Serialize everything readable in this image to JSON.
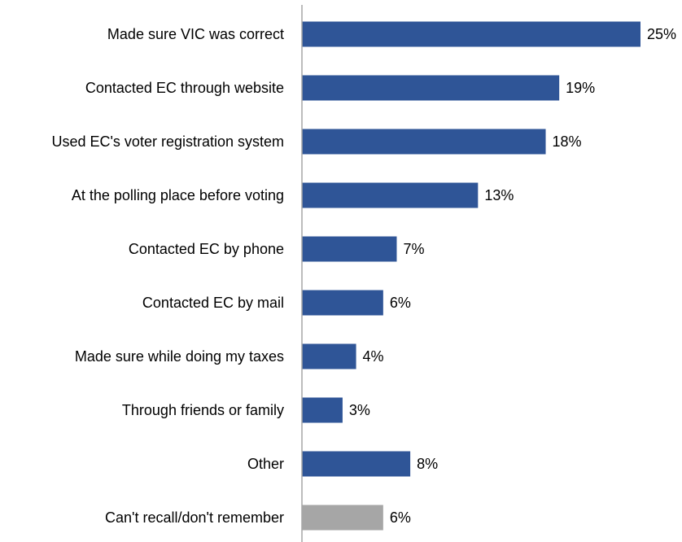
{
  "chart_data": {
    "type": "bar",
    "orientation": "horizontal",
    "categories": [
      "Made sure VIC was correct",
      "Contacted EC through website",
      "Used EC's voter registration system",
      "At the polling place before voting",
      "Contacted EC by phone",
      "Contacted EC by mail",
      "Made sure while doing my taxes",
      "Through friends or family",
      "Other",
      "Can't recall/don't remember"
    ],
    "values": [
      25,
      19,
      18,
      13,
      7,
      6,
      4,
      3,
      8,
      6
    ],
    "value_labels": [
      "25%",
      "19%",
      "18%",
      "13%",
      "7%",
      "6%",
      "4%",
      "3%",
      "8%",
      "6%"
    ],
    "bar_colors": [
      "#2f5597",
      "#2f5597",
      "#2f5597",
      "#2f5597",
      "#2f5597",
      "#2f5597",
      "#2f5597",
      "#2f5597",
      "#2f5597",
      "#a6a6a6"
    ],
    "xlim": [
      0,
      25
    ],
    "title": "",
    "xlabel": "",
    "ylabel": "",
    "grid": false,
    "legend": "none"
  }
}
